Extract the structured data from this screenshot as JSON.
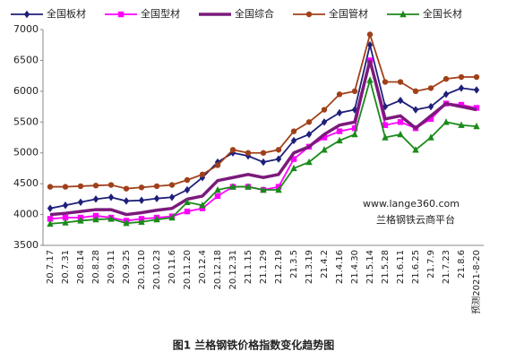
{
  "chart_data": {
    "type": "line",
    "title": "图1 兰格钢铁价格指数变化趋势图",
    "annotations": [
      "www.lange360.com",
      "兰格钢铁云商平台"
    ],
    "categories": [
      "20.7.17",
      "20.7.31",
      "20.8.14",
      "20.8.28",
      "20.9.11",
      "20.9.25",
      "20.10.10",
      "20.10.23",
      "20.11.6",
      "20.11.20",
      "20.12.4",
      "20.12.18",
      "20.12.31",
      "21.1.15",
      "21.1.29",
      "21.2.19",
      "21.3.5",
      "21.3.19",
      "21.4.2",
      "21.4.16",
      "21.4.30",
      "21.5.14",
      "21.5.28",
      "21.6.11",
      "21.6.25",
      "21.7.9",
      "21.7.23",
      "21.8.6",
      "预测2021-8-20"
    ],
    "series": [
      {
        "name": "全国板材",
        "color": "#1f1f7a",
        "marker": "diamond",
        "values": [
          4100,
          4150,
          4200,
          4250,
          4280,
          4220,
          4230,
          4260,
          4280,
          4400,
          4600,
          4850,
          5000,
          4950,
          4850,
          4900,
          5200,
          5300,
          5500,
          5650,
          5700,
          6750,
          5750,
          5850,
          5700,
          5750,
          5950,
          6050,
          6020
        ]
      },
      {
        "name": "全国型材",
        "color": "#ff00ff",
        "marker": "square",
        "values": [
          3930,
          3950,
          3950,
          3980,
          3950,
          3900,
          3930,
          3950,
          3970,
          4050,
          4100,
          4300,
          4450,
          4450,
          4400,
          4450,
          4900,
          5100,
          5250,
          5350,
          5400,
          6500,
          5450,
          5500,
          5400,
          5550,
          5800,
          5780,
          5730
        ]
      },
      {
        "name": "全国综合",
        "color": "#7b1a7b",
        "marker": "none",
        "values": [
          4000,
          4020,
          4050,
          4080,
          4080,
          4000,
          4030,
          4070,
          4100,
          4250,
          4300,
          4550,
          4600,
          4650,
          4600,
          4650,
          5000,
          5100,
          5300,
          5450,
          5500,
          6500,
          5550,
          5600,
          5400,
          5600,
          5800,
          5750,
          5700
        ]
      },
      {
        "name": "全国管材",
        "color": "#a0401a",
        "marker": "circle",
        "values": [
          4450,
          4450,
          4460,
          4470,
          4480,
          4420,
          4440,
          4460,
          4480,
          4560,
          4650,
          4800,
          5050,
          5000,
          5000,
          5050,
          5350,
          5500,
          5700,
          5950,
          6000,
          6920,
          6150,
          6150,
          6000,
          6050,
          6200,
          6230,
          6230
        ]
      },
      {
        "name": "全国长材",
        "color": "#1a8a1a",
        "marker": "triangle",
        "values": [
          3850,
          3870,
          3900,
          3920,
          3930,
          3860,
          3880,
          3920,
          3950,
          4200,
          4150,
          4400,
          4450,
          4450,
          4400,
          4400,
          4750,
          4850,
          5050,
          5200,
          5300,
          6180,
          5250,
          5300,
          5050,
          5250,
          5500,
          5450,
          5430
        ]
      }
    ],
    "ylim": [
      3500,
      7000
    ],
    "yticks": [
      3500,
      4000,
      4500,
      5000,
      5500,
      6000,
      6500,
      7000
    ],
    "grid": false
  }
}
